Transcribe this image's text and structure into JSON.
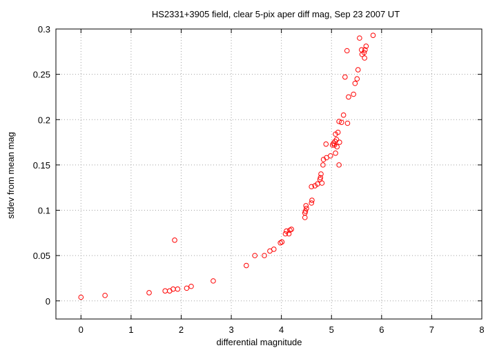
{
  "chart_data": {
    "type": "scatter",
    "title": "HS2331+3905 field, clear 5-pix aper diff mag, Sep 23 2007 UT",
    "xlabel": "differential magnitude",
    "ylabel": "stdev from mean mag",
    "xlim": [
      -0.5,
      8
    ],
    "ylim": [
      -0.02,
      0.3
    ],
    "xticks": [
      "0",
      "1",
      "2",
      "3",
      "4",
      "5",
      "6",
      "7",
      "8"
    ],
    "yticks": [
      "0",
      "0.05",
      "0.1",
      "0.15",
      "0.2",
      "0.25",
      "0.3"
    ],
    "grid": true,
    "marker": "open-circle",
    "point_color": "#ff0000",
    "series": [
      {
        "points": [
          [
            0.0,
            0.004
          ],
          [
            0.48,
            0.006
          ],
          [
            1.36,
            0.009
          ],
          [
            1.68,
            0.011
          ],
          [
            1.77,
            0.011
          ],
          [
            1.84,
            0.013
          ],
          [
            1.87,
            0.067
          ],
          [
            1.93,
            0.013
          ],
          [
            2.11,
            0.014
          ],
          [
            2.2,
            0.016
          ],
          [
            2.64,
            0.022
          ],
          [
            3.3,
            0.039
          ],
          [
            3.47,
            0.05
          ],
          [
            3.66,
            0.05
          ],
          [
            3.77,
            0.055
          ],
          [
            3.85,
            0.057
          ],
          [
            3.98,
            0.064
          ],
          [
            4.01,
            0.065
          ],
          [
            4.08,
            0.074
          ],
          [
            4.1,
            0.077
          ],
          [
            4.15,
            0.074
          ],
          [
            4.17,
            0.078
          ],
          [
            4.2,
            0.079
          ],
          [
            4.47,
            0.092
          ],
          [
            4.47,
            0.097
          ],
          [
            4.48,
            0.099
          ],
          [
            4.49,
            0.105
          ],
          [
            4.5,
            0.102
          ],
          [
            4.6,
            0.108
          ],
          [
            4.61,
            0.111
          ],
          [
            4.6,
            0.126
          ],
          [
            4.67,
            0.127
          ],
          [
            4.72,
            0.129
          ],
          [
            4.77,
            0.134
          ],
          [
            4.78,
            0.136
          ],
          [
            4.79,
            0.14
          ],
          [
            4.81,
            0.13
          ],
          [
            4.83,
            0.15
          ],
          [
            4.84,
            0.156
          ],
          [
            4.89,
            0.173
          ],
          [
            4.9,
            0.158
          ],
          [
            4.98,
            0.16
          ],
          [
            5.02,
            0.172
          ],
          [
            5.04,
            0.174
          ],
          [
            5.06,
            0.172
          ],
          [
            5.07,
            0.176
          ],
          [
            5.08,
            0.184
          ],
          [
            5.08,
            0.163
          ],
          [
            5.1,
            0.178
          ],
          [
            5.11,
            0.17
          ],
          [
            5.13,
            0.186
          ],
          [
            5.15,
            0.15
          ],
          [
            5.16,
            0.175
          ],
          [
            5.15,
            0.198
          ],
          [
            5.2,
            0.197
          ],
          [
            5.24,
            0.205
          ],
          [
            5.27,
            0.247
          ],
          [
            5.31,
            0.276
          ],
          [
            5.32,
            0.196
          ],
          [
            5.34,
            0.225
          ],
          [
            5.44,
            0.228
          ],
          [
            5.47,
            0.24
          ],
          [
            5.51,
            0.245
          ],
          [
            5.53,
            0.255
          ],
          [
            5.56,
            0.29
          ],
          [
            5.6,
            0.277
          ],
          [
            5.61,
            0.272
          ],
          [
            5.65,
            0.274
          ],
          [
            5.66,
            0.268
          ],
          [
            5.67,
            0.277
          ],
          [
            5.69,
            0.281
          ],
          [
            5.83,
            0.293
          ]
        ]
      }
    ]
  }
}
